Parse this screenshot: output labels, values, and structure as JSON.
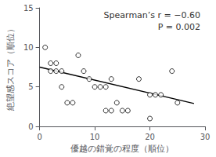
{
  "chart_data": {
    "type": "scatter",
    "xlabel": "優越の錯覚の程度（順位）",
    "ylabel": "絶望感スコア（順位）",
    "annotations": [
      "Spearman’s r = −0.60",
      "P = 0.002"
    ],
    "series": [
      {
        "type": "scatter",
        "marker": "circle_open",
        "color": "black",
        "x": [
          1,
          2,
          2,
          3,
          3,
          4,
          4,
          5,
          6,
          7,
          8,
          9,
          10,
          11,
          12,
          12,
          13,
          13,
          14,
          15,
          16,
          18,
          20,
          20,
          21,
          22,
          24,
          25
        ],
        "values": [
          10,
          8,
          7,
          7,
          8,
          7,
          5,
          3,
          3,
          9,
          7,
          6,
          5,
          5,
          5,
          2,
          6,
          2,
          3,
          2,
          2,
          6,
          4,
          1,
          4,
          4,
          7,
          3
        ]
      },
      {
        "type": "line",
        "color": "black",
        "line_style": "solid",
        "x": [
          0,
          28
        ],
        "values": [
          7.5,
          2.9
        ]
      }
    ],
    "xlim": [
      0,
      30
    ],
    "xticks": [
      0,
      10,
      20,
      30
    ],
    "ylim": [
      0,
      15
    ],
    "yticks": [
      0,
      5,
      10,
      15
    ],
    "grid": false
  }
}
